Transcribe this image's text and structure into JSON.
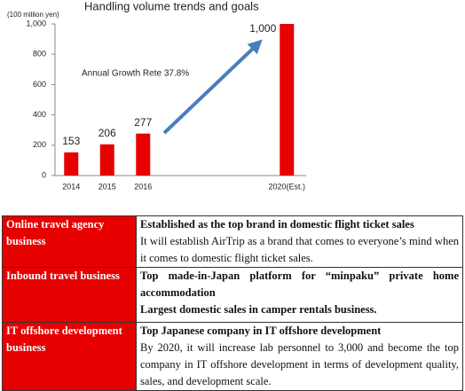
{
  "chart_data": {
    "type": "bar",
    "title": "Handling volume trends and goals",
    "y_unit": "(100 million yen)",
    "categories": [
      "2014",
      "2015",
      "2016",
      null,
      null,
      null,
      "2020(Est.)"
    ],
    "values": [
      153,
      206,
      277,
      null,
      null,
      null,
      1000
    ],
    "value_labels": [
      "153",
      "206",
      "277",
      null,
      null,
      null,
      "1,000"
    ],
    "color": "#e60000",
    "ylim": [
      0,
      1000
    ],
    "yticks": [
      0,
      200,
      400,
      600,
      800,
      {
        "value": 1000,
        "label": "1,000"
      }
    ],
    "grid": false,
    "annotation": "Annual Growth Rete  37.8%"
  },
  "table": {
    "rows": [
      {
        "label": "Online travel agency business",
        "lines": [
          "Established as the top brand in domestic flight ticket sales",
          "It will establish AirTrip as a brand that comes to everyone’s mind when it comes to domestic flight ticket sales."
        ]
      },
      {
        "label": "Inbound travel business",
        "lines": [
          "Top made-in-Japan platform for “minpaku” private home accommodation",
          "Largest domestic sales in camper rentals business."
        ]
      },
      {
        "label": "IT offshore development business",
        "lines": [
          "Top Japanese company in IT offshore development",
          "By 2020, it will increase lab personnel to 3,000 and become the top company in IT offshore development in terms of development quality, sales, and development scale."
        ]
      }
    ]
  }
}
